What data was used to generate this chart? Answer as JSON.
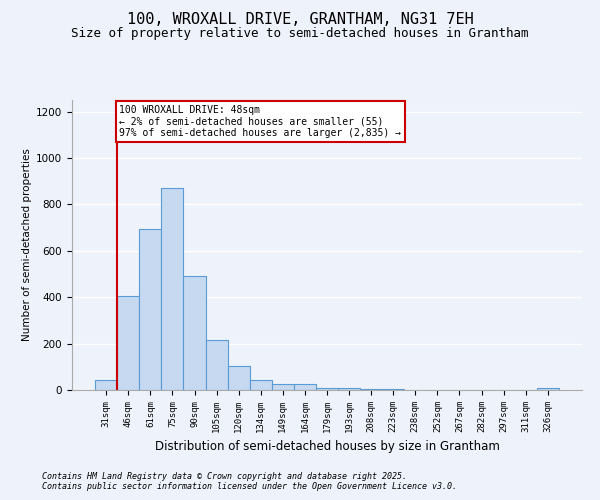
{
  "title": "100, WROXALL DRIVE, GRANTHAM, NG31 7EH",
  "subtitle": "Size of property relative to semi-detached houses in Grantham",
  "xlabel": "Distribution of semi-detached houses by size in Grantham",
  "ylabel": "Number of semi-detached properties",
  "categories": [
    "31sqm",
    "46sqm",
    "61sqm",
    "75sqm",
    "90sqm",
    "105sqm",
    "120sqm",
    "134sqm",
    "149sqm",
    "164sqm",
    "179sqm",
    "193sqm",
    "208sqm",
    "223sqm",
    "238sqm",
    "252sqm",
    "267sqm",
    "282sqm",
    "297sqm",
    "311sqm",
    "326sqm"
  ],
  "values": [
    45,
    405,
    695,
    870,
    490,
    215,
    105,
    43,
    28,
    25,
    10,
    8,
    5,
    3,
    2,
    2,
    1,
    1,
    0,
    0,
    8
  ],
  "bar_color": "#c6d9f1",
  "bar_edge_color": "#5b9bd5",
  "annotation_text": "100 WROXALL DRIVE: 48sqm\n← 2% of semi-detached houses are smaller (55)\n97% of semi-detached houses are larger (2,835) →",
  "annotation_box_color": "#ffffff",
  "annotation_box_edge_color": "#cc0000",
  "red_line_color": "#cc0000",
  "footnote1": "Contains HM Land Registry data © Crown copyright and database right 2025.",
  "footnote2": "Contains public sector information licensed under the Open Government Licence v3.0.",
  "ylim": [
    0,
    1250
  ],
  "yticks": [
    0,
    200,
    400,
    600,
    800,
    1000,
    1200
  ],
  "bg_color": "#eef2fa",
  "grid_color": "#ffffff",
  "title_fontsize": 11,
  "subtitle_fontsize": 9
}
